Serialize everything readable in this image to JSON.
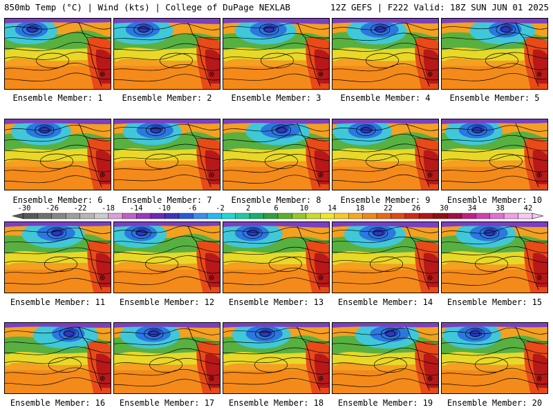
{
  "header": {
    "left": "850mb Temp (°C) | Wind (kts) | College of DuPage NEXLAB",
    "right": "12Z GEFS | F222 Valid: 18Z SUN JUN 01 2025"
  },
  "members": [
    "Ensemble Member: 1",
    "Ensemble Member: 2",
    "Ensemble Member: 3",
    "Ensemble Member: 4",
    "Ensemble Member: 5",
    "Ensemble Member: 6",
    "Ensemble Member: 7",
    "Ensemble Member: 8",
    "Ensemble Member: 9",
    "Ensemble Member: 10",
    "Ensemble Member: 11",
    "Ensemble Member: 12",
    "Ensemble Member: 13",
    "Ensemble Member: 14",
    "Ensemble Member: 15",
    "Ensemble Member: 16",
    "Ensemble Member: 17",
    "Ensemble Member: 18",
    "Ensemble Member: 19",
    "Ensemble Member: 20"
  ],
  "colorbar": {
    "ticks": [
      "-30",
      "-26",
      "-22",
      "-18",
      "-14",
      "-10",
      "-6",
      "-2",
      "2",
      "6",
      "10",
      "14",
      "18",
      "22",
      "26",
      "30",
      "34",
      "38",
      "42"
    ],
    "colors": [
      "#595959",
      "#707070",
      "#878787",
      "#9e9e9e",
      "#b5b5b5",
      "#cbcbcb",
      "#d9a0d9",
      "#c060c8",
      "#9a38c0",
      "#6a2ab8",
      "#3c34c0",
      "#2a5ad8",
      "#3a8ef0",
      "#28b8f0",
      "#1ed8d0",
      "#20c8a0",
      "#18b070",
      "#30a040",
      "#5cb030",
      "#94c828",
      "#c8dc28",
      "#f0e628",
      "#f8c828",
      "#f8a820",
      "#f08818",
      "#e86818",
      "#e04818",
      "#d02818",
      "#b01818",
      "#901010",
      "#a01040",
      "#c02080",
      "#d040b0",
      "#e070d0",
      "#f0a0e0",
      "#f8c8f0"
    ]
  }
}
